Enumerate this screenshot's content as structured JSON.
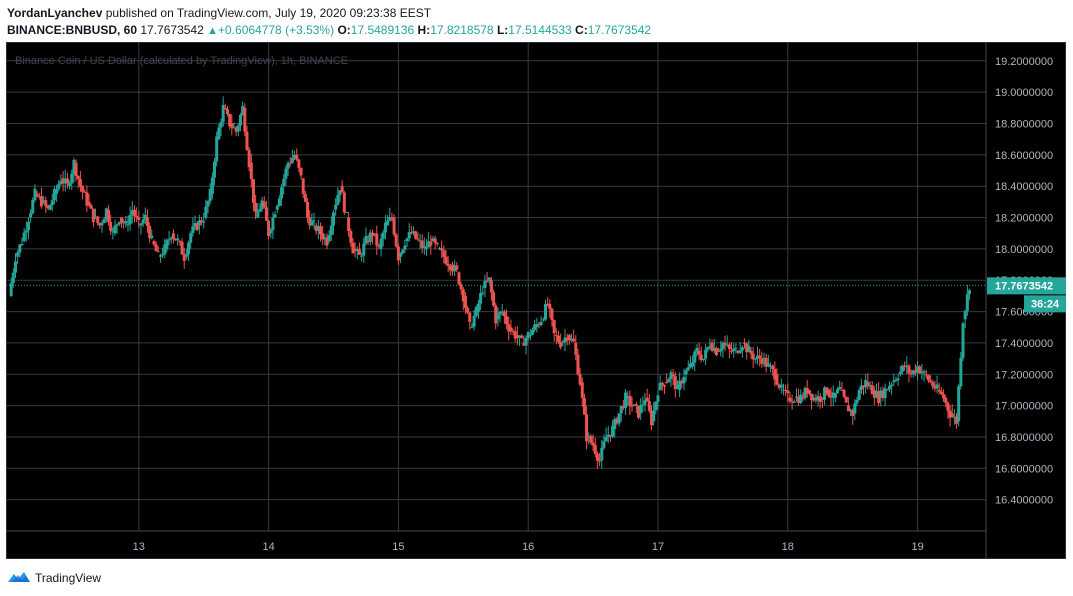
{
  "header": {
    "author": "YordanLyanchev",
    "published": "published on TradingView.com, July 19, 2020 09:23:38 EEST",
    "symbol": "BINANCE:BNBUSD, 60",
    "last": "17.7673542",
    "change": "+0.6064778 (+3.53%)",
    "o_label": "O:",
    "o_value": "17.5489136",
    "h_label": "H:",
    "h_value": "17.8218578",
    "l_label": "L:",
    "l_value": "17.5144533",
    "c_label": "C:",
    "c_value": "17.7673542"
  },
  "footer": {
    "brand": "TradingView"
  },
  "colors": {
    "up": "#26a69a",
    "down": "#ef5350",
    "background": "#000000",
    "grid": "#363a45",
    "axis_text": "#b2b5be"
  },
  "chart_data": {
    "type": "candlestick",
    "title": "Binance Coin / US Dollar (calculated by TradingView), 1h, BINANCE",
    "x_ticks": [
      "13",
      "14",
      "15",
      "16",
      "17",
      "18",
      "19"
    ],
    "y_ticks": [
      "16.4000000",
      "16.6000000",
      "16.8000000",
      "17.0000000",
      "17.2000000",
      "17.4000000",
      "17.6000000",
      "17.8000000",
      "18.0000000",
      "18.2000000",
      "18.4000000",
      "18.6000000",
      "18.8000000",
      "19.0000000",
      "19.2000000"
    ],
    "ylim": [
      16.2,
      19.32
    ],
    "last_price_label": "17.7673542",
    "countdown_label": "36:24",
    "grid": true,
    "series_approx_close_path": [
      [
        12.0,
        17.7
      ],
      [
        12.05,
        17.95
      ],
      [
        12.1,
        18.05
      ],
      [
        12.15,
        18.2
      ],
      [
        12.2,
        18.35
      ],
      [
        12.25,
        18.3
      ],
      [
        12.3,
        18.25
      ],
      [
        12.35,
        18.35
      ],
      [
        12.4,
        18.45
      ],
      [
        12.45,
        18.4
      ],
      [
        12.5,
        18.55
      ],
      [
        12.55,
        18.4
      ],
      [
        12.6,
        18.3
      ],
      [
        12.65,
        18.2
      ],
      [
        12.7,
        18.15
      ],
      [
        12.75,
        18.25
      ],
      [
        12.8,
        18.1
      ],
      [
        12.85,
        18.2
      ],
      [
        12.9,
        18.15
      ],
      [
        12.95,
        18.25
      ],
      [
        13.0,
        18.15
      ],
      [
        13.05,
        18.2
      ],
      [
        13.1,
        18.05
      ],
      [
        13.15,
        17.95
      ],
      [
        13.2,
        18.0
      ],
      [
        13.25,
        18.1
      ],
      [
        13.3,
        18.05
      ],
      [
        13.35,
        17.95
      ],
      [
        13.4,
        18.1
      ],
      [
        13.45,
        18.15
      ],
      [
        13.5,
        18.2
      ],
      [
        13.55,
        18.35
      ],
      [
        13.6,
        18.7
      ],
      [
        13.65,
        18.9
      ],
      [
        13.7,
        18.8
      ],
      [
        13.75,
        18.75
      ],
      [
        13.8,
        18.9
      ],
      [
        13.85,
        18.55
      ],
      [
        13.9,
        18.2
      ],
      [
        13.95,
        18.3
      ],
      [
        14.0,
        18.1
      ],
      [
        14.05,
        18.25
      ],
      [
        14.1,
        18.4
      ],
      [
        14.15,
        18.55
      ],
      [
        14.2,
        18.6
      ],
      [
        14.25,
        18.45
      ],
      [
        14.3,
        18.2
      ],
      [
        14.35,
        18.15
      ],
      [
        14.4,
        18.1
      ],
      [
        14.45,
        18.05
      ],
      [
        14.5,
        18.25
      ],
      [
        14.55,
        18.4
      ],
      [
        14.6,
        18.2
      ],
      [
        14.65,
        18.0
      ],
      [
        14.7,
        17.95
      ],
      [
        14.75,
        18.05
      ],
      [
        14.8,
        18.1
      ],
      [
        14.85,
        18.0
      ],
      [
        14.9,
        18.15
      ],
      [
        14.95,
        18.2
      ],
      [
        15.0,
        17.95
      ],
      [
        15.05,
        18.05
      ],
      [
        15.1,
        18.1
      ],
      [
        15.15,
        18.05
      ],
      [
        15.2,
        18.0
      ],
      [
        15.25,
        18.05
      ],
      [
        15.3,
        18.0
      ],
      [
        15.35,
        17.95
      ],
      [
        15.4,
        17.9
      ],
      [
        15.45,
        17.85
      ],
      [
        15.5,
        17.7
      ],
      [
        15.55,
        17.5
      ],
      [
        15.6,
        17.6
      ],
      [
        15.65,
        17.75
      ],
      [
        15.7,
        17.8
      ],
      [
        15.75,
        17.55
      ],
      [
        15.8,
        17.6
      ],
      [
        15.85,
        17.5
      ],
      [
        15.9,
        17.45
      ],
      [
        15.95,
        17.4
      ],
      [
        16.0,
        17.45
      ],
      [
        16.05,
        17.5
      ],
      [
        16.1,
        17.55
      ],
      [
        16.15,
        17.65
      ],
      [
        16.2,
        17.45
      ],
      [
        16.25,
        17.4
      ],
      [
        16.3,
        17.45
      ],
      [
        16.35,
        17.4
      ],
      [
        16.4,
        17.15
      ],
      [
        16.45,
        16.8
      ],
      [
        16.5,
        16.75
      ],
      [
        16.55,
        16.65
      ],
      [
        16.6,
        16.8
      ],
      [
        16.65,
        16.85
      ],
      [
        16.7,
        16.95
      ],
      [
        16.75,
        17.05
      ],
      [
        16.8,
        17.0
      ],
      [
        16.85,
        16.95
      ],
      [
        16.9,
        17.05
      ],
      [
        16.95,
        16.9
      ],
      [
        17.0,
        17.1
      ],
      [
        17.05,
        17.15
      ],
      [
        17.1,
        17.2
      ],
      [
        17.15,
        17.1
      ],
      [
        17.2,
        17.2
      ],
      [
        17.25,
        17.25
      ],
      [
        17.3,
        17.35
      ],
      [
        17.35,
        17.3
      ],
      [
        17.4,
        17.4
      ],
      [
        17.45,
        17.35
      ],
      [
        17.5,
        17.4
      ],
      [
        17.55,
        17.35
      ],
      [
        17.6,
        17.35
      ],
      [
        17.65,
        17.4
      ],
      [
        17.7,
        17.35
      ],
      [
        17.75,
        17.3
      ],
      [
        17.8,
        17.3
      ],
      [
        17.85,
        17.25
      ],
      [
        17.9,
        17.2
      ],
      [
        17.95,
        17.1
      ],
      [
        18.0,
        17.05
      ],
      [
        18.05,
        17.05
      ],
      [
        18.1,
        17.05
      ],
      [
        18.15,
        17.1
      ],
      [
        18.2,
        17.05
      ],
      [
        18.25,
        17.05
      ],
      [
        18.3,
        17.1
      ],
      [
        18.35,
        17.05
      ],
      [
        18.4,
        17.1
      ],
      [
        18.45,
        17.0
      ],
      [
        18.5,
        16.95
      ],
      [
        18.55,
        17.1
      ],
      [
        18.6,
        17.15
      ],
      [
        18.65,
        17.1
      ],
      [
        18.7,
        17.05
      ],
      [
        18.75,
        17.1
      ],
      [
        18.8,
        17.15
      ],
      [
        18.85,
        17.2
      ],
      [
        18.9,
        17.25
      ],
      [
        18.95,
        17.2
      ],
      [
        19.0,
        17.25
      ],
      [
        19.05,
        17.2
      ],
      [
        19.1,
        17.15
      ],
      [
        19.15,
        17.1
      ],
      [
        19.2,
        17.05
      ],
      [
        19.25,
        16.95
      ],
      [
        19.3,
        16.9
      ],
      [
        19.35,
        17.55
      ],
      [
        19.4,
        17.77
      ]
    ]
  }
}
